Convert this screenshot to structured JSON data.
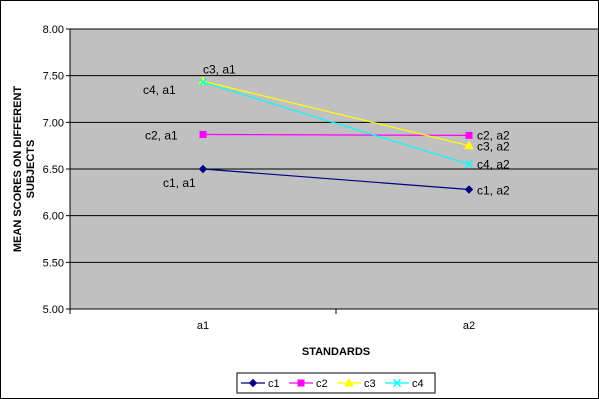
{
  "chart_data": {
    "type": "line",
    "title": "",
    "xlabel": "STANDARDS",
    "ylabel_lines": [
      "MEAN SCORES ON DIFFERENT",
      "SUBJECTS"
    ],
    "categories": [
      "a1",
      "a2"
    ],
    "ylim": [
      5.0,
      8.0
    ],
    "ytick_labels": [
      "5.00",
      "5.50",
      "6.00",
      "6.50",
      "7.00",
      "7.50",
      "8.00"
    ],
    "grid": true,
    "legend_position": "bottom",
    "plot_background": "#c0c0c0",
    "series": [
      {
        "name": "c1",
        "values": [
          6.5,
          6.28
        ],
        "color": "#000080",
        "marker": "diamond",
        "labels": [
          "c1, a1",
          "c1, a2"
        ]
      },
      {
        "name": "c2",
        "values": [
          6.87,
          6.86
        ],
        "color": "#ff00ff",
        "marker": "square",
        "labels": [
          "c2, a1",
          "c2, a2"
        ]
      },
      {
        "name": "c3",
        "values": [
          7.44,
          6.75
        ],
        "color": "#ffff00",
        "marker": "triangle",
        "labels": [
          "c3, a1",
          "c3, a2"
        ]
      },
      {
        "name": "c4",
        "values": [
          7.43,
          6.55
        ],
        "color": "#00ffff",
        "marker": "x",
        "labels": [
          "c4, a1",
          "c4, a2"
        ]
      }
    ]
  }
}
